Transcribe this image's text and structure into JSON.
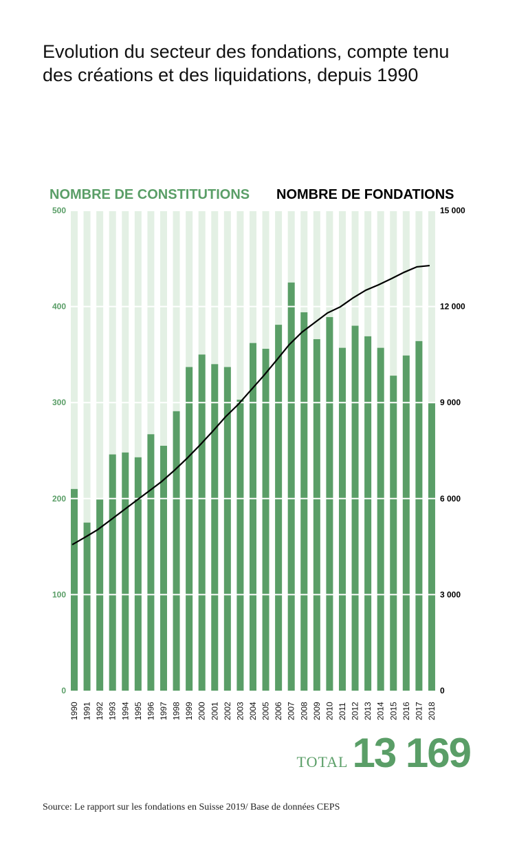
{
  "chart_data": {
    "type": "bar",
    "title": "Evolution du secteur des fondations, compte tenu des créations et des liquidations, depuis 1990",
    "categories": [
      "1990",
      "1991",
      "1992",
      "1993",
      "1994",
      "1995",
      "1996",
      "1997",
      "1998",
      "1999",
      "2000",
      "2001",
      "2002",
      "2003",
      "2004",
      "2005",
      "2006",
      "2007",
      "2008",
      "2009",
      "2010",
      "2011",
      "2012",
      "2013",
      "2014",
      "2015",
      "2016",
      "2017",
      "2018"
    ],
    "series": [
      {
        "name": "NOMBRE DE CONSTITUTIONS",
        "type": "bar",
        "axis": "left",
        "color": "#5a9e67",
        "values": [
          210,
          175,
          199,
          246,
          248,
          243,
          267,
          255,
          291,
          337,
          350,
          340,
          337,
          303,
          362,
          356,
          381,
          425,
          394,
          366,
          389,
          357,
          380,
          369,
          357,
          328,
          349,
          364,
          300
        ]
      },
      {
        "name": "NOMBRE DE FONDATIONS",
        "type": "line",
        "axis": "right",
        "color": "#000000",
        "values": [
          4560,
          4790,
          5030,
          5330,
          5630,
          5930,
          6230,
          6530,
          6880,
          7260,
          7670,
          8100,
          8550,
          8940,
          9390,
          9840,
          10320,
          10810,
          11200,
          11500,
          11800,
          11990,
          12270,
          12510,
          12680,
          12870,
          13070,
          13240,
          13280
        ]
      }
    ],
    "left_axis": {
      "ylim": [
        0,
        500
      ],
      "ticks": [
        "0",
        "100",
        "200",
        "300",
        "400",
        "500"
      ],
      "color": "#5a9e67"
    },
    "right_axis": {
      "ylim": [
        0,
        15000
      ],
      "ticks": [
        "0",
        "3 000",
        "6 000",
        "9 000",
        "12 000",
        "15 000"
      ]
    },
    "bar_background_color": "#e3f0e4",
    "grid": true,
    "legend_placement": "top"
  },
  "total": {
    "label": "TOTAL",
    "value": "13 169"
  },
  "source": "Source: Le rapport sur les fondations en Suisse 2019/ Base de données CEPS"
}
